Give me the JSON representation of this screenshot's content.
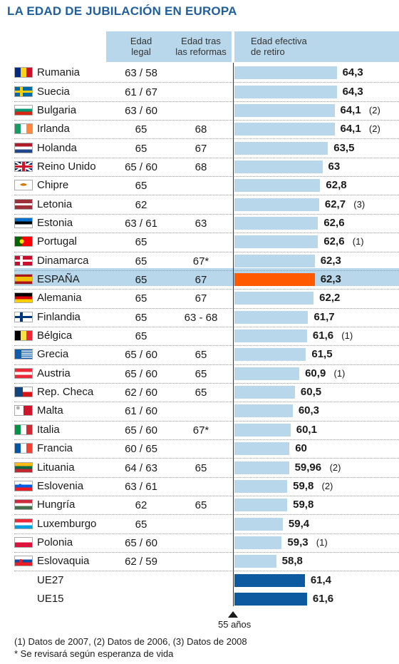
{
  "title": "LA EDAD DE JUBILACIÓN EN EUROPA",
  "headers": {
    "legal_1": "Edad",
    "legal_2": "legal",
    "ref_1": "Edad tras",
    "ref_2": "las reformas",
    "eff_1": "Edad efectiva",
    "eff_2": "de retiro"
  },
  "colors": {
    "bar": "#b9d7ea",
    "highlight_bar": "#ff5a00",
    "eu_bar": "#0e5aa0",
    "header_bg": "#b9d7ea",
    "title": "#1f5f9e"
  },
  "chart_data": {
    "type": "bar",
    "orientation": "horizontal",
    "title": "LA EDAD DE JUBILACIÓN EN EUROPA",
    "axis_label": "55 años",
    "xlim": [
      55,
      64.3
    ],
    "rows": [
      {
        "country": "Rumania",
        "legal": "63 / 58",
        "reform": "",
        "value": 64.3,
        "label": "64,3",
        "note": "",
        "flag": "ro"
      },
      {
        "country": "Suecia",
        "legal": "61 / 67",
        "reform": "",
        "value": 64.3,
        "label": "64,3",
        "note": "",
        "flag": "se"
      },
      {
        "country": "Bulgaria",
        "legal": "63 / 60",
        "reform": "",
        "value": 64.1,
        "label": "64,1",
        "note": "(2)",
        "flag": "bg"
      },
      {
        "country": "Irlanda",
        "legal": "65",
        "reform": "68",
        "value": 64.1,
        "label": "64,1",
        "note": "(2)",
        "flag": "ie"
      },
      {
        "country": "Holanda",
        "legal": "65",
        "reform": "67",
        "value": 63.5,
        "label": "63,5",
        "note": "",
        "flag": "nl"
      },
      {
        "country": "Reino Unido",
        "legal": "65 / 60",
        "reform": "68",
        "value": 63,
        "label": "63",
        "note": "",
        "flag": "gb"
      },
      {
        "country": "Chipre",
        "legal": "65",
        "reform": "",
        "value": 62.8,
        "label": "62,8",
        "note": "",
        "flag": "cy"
      },
      {
        "country": "Letonia",
        "legal": "62",
        "reform": "",
        "value": 62.7,
        "label": "62,7",
        "note": "(3)",
        "flag": "lv"
      },
      {
        "country": "Estonia",
        "legal": "63 / 61",
        "reform": "63",
        "value": 62.6,
        "label": "62,6",
        "note": "",
        "flag": "ee"
      },
      {
        "country": "Portugal",
        "legal": "65",
        "reform": "",
        "value": 62.6,
        "label": "62,6",
        "note": "(1)",
        "flag": "pt"
      },
      {
        "country": "Dinamarca",
        "legal": "65",
        "reform": "67*",
        "value": 62.3,
        "label": "62,3",
        "note": "",
        "flag": "dk"
      },
      {
        "country": "ESPAÑA",
        "legal": "65",
        "reform": "67",
        "value": 62.3,
        "label": "62,3",
        "note": "",
        "flag": "es",
        "highlight": true
      },
      {
        "country": "Alemania",
        "legal": "65",
        "reform": "67",
        "value": 62.2,
        "label": "62,2",
        "note": "",
        "flag": "de"
      },
      {
        "country": "Finlandia",
        "legal": "65",
        "reform": "63 - 68",
        "value": 61.7,
        "label": "61,7",
        "note": "",
        "flag": "fi"
      },
      {
        "country": "Bélgica",
        "legal": "65",
        "reform": "",
        "value": 61.6,
        "label": "61,6",
        "note": "(1)",
        "flag": "be"
      },
      {
        "country": "Grecia",
        "legal": "65 / 60",
        "reform": "65",
        "value": 61.5,
        "label": "61,5",
        "note": "",
        "flag": "gr"
      },
      {
        "country": "Austria",
        "legal": "65 / 60",
        "reform": "65",
        "value": 60.9,
        "label": "60,9",
        "note": "(1)",
        "flag": "at"
      },
      {
        "country": "Rep. Checa",
        "legal": "62 / 60",
        "reform": "65",
        "value": 60.5,
        "label": "60,5",
        "note": "",
        "flag": "cz"
      },
      {
        "country": "Malta",
        "legal": "61 / 60",
        "reform": "",
        "value": 60.3,
        "label": "60,3",
        "note": "",
        "flag": "mt"
      },
      {
        "country": "Italia",
        "legal": "65 / 60",
        "reform": "67*",
        "value": 60.1,
        "label": "60,1",
        "note": "",
        "flag": "it"
      },
      {
        "country": "Francia",
        "legal": "60 / 65",
        "reform": "",
        "value": 60,
        "label": "60",
        "note": "",
        "flag": "fr"
      },
      {
        "country": "Lituania",
        "legal": "64 / 63",
        "reform": "65",
        "value": 59.96,
        "label": "59,96",
        "note": "(2)",
        "flag": "lt"
      },
      {
        "country": "Eslovenia",
        "legal": "63 / 61",
        "reform": "",
        "value": 59.8,
        "label": "59,8",
        "note": "(2)",
        "flag": "si"
      },
      {
        "country": "Hungría",
        "legal": "62",
        "reform": "65",
        "value": 59.8,
        "label": "59,8",
        "note": "",
        "flag": "hu"
      },
      {
        "country": "Luxemburgo",
        "legal": "65",
        "reform": "",
        "value": 59.4,
        "label": "59,4",
        "note": "",
        "flag": "lu"
      },
      {
        "country": "Polonia",
        "legal": "65 / 60",
        "reform": "",
        "value": 59.3,
        "label": "59,3",
        "note": "(1)",
        "flag": "pl"
      },
      {
        "country": "Eslovaquia",
        "legal": "62 / 59",
        "reform": "",
        "value": 58.8,
        "label": "58,8",
        "note": "",
        "flag": "sk"
      },
      {
        "country": "UE27",
        "legal": "",
        "reform": "",
        "value": 61.4,
        "label": "61,4",
        "note": "",
        "flag": "",
        "eu": true
      },
      {
        "country": "UE15",
        "legal": "",
        "reform": "",
        "value": 61.6,
        "label": "61,6",
        "note": "",
        "flag": "",
        "eu": true
      }
    ]
  },
  "footnotes": {
    "line1": "(1) Datos de 2007, (2) Datos de 2006, (3) Datos de 2008",
    "line2": "* Se revisará según esperanza de vida"
  }
}
